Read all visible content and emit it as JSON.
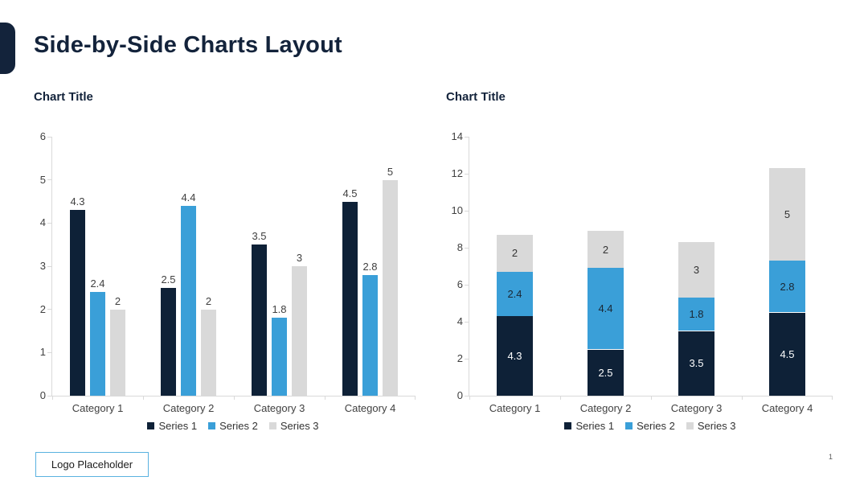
{
  "slide": {
    "title": "Side-by-Side Charts Layout",
    "logo_placeholder": "Logo Placeholder",
    "page_number": "1",
    "accent_color": "#13233b",
    "logo_border_color": "#5ab2e0"
  },
  "chart_data": [
    {
      "type": "bar",
      "stacked": false,
      "title": "Chart Title",
      "categories": [
        "Category 1",
        "Category 2",
        "Category 3",
        "Category 4"
      ],
      "series": [
        {
          "name": "Series 1",
          "values": [
            4.3,
            2.5,
            3.5,
            4.5
          ],
          "color": "#0e2137",
          "label_color": "#ffffff"
        },
        {
          "name": "Series 2",
          "values": [
            2.4,
            4.4,
            1.8,
            2.8
          ],
          "color": "#3a9fd8",
          "label_color": "#1a2733"
        },
        {
          "name": "Series 3",
          "values": [
            2,
            2,
            3,
            5
          ],
          "color": "#d9d9d9",
          "label_color": "#333333"
        }
      ],
      "ylim": [
        0,
        6
      ],
      "ytick_step": 1,
      "grid": false,
      "legend_position": "bottom",
      "data_labels": true,
      "label_position": "above"
    },
    {
      "type": "bar",
      "stacked": true,
      "title": "Chart Title",
      "categories": [
        "Category 1",
        "Category 2",
        "Category 3",
        "Category 4"
      ],
      "series": [
        {
          "name": "Series 1",
          "values": [
            4.3,
            2.5,
            3.5,
            4.5
          ],
          "color": "#0e2137",
          "label_color": "#ffffff"
        },
        {
          "name": "Series 2",
          "values": [
            2.4,
            4.4,
            1.8,
            2.8
          ],
          "color": "#3a9fd8",
          "label_color": "#1a2733"
        },
        {
          "name": "Series 3",
          "values": [
            2,
            2,
            3,
            5
          ],
          "color": "#d9d9d9",
          "label_color": "#333333"
        }
      ],
      "ylim": [
        0,
        14
      ],
      "ytick_step": 2,
      "grid": false,
      "legend_position": "bottom",
      "data_labels": true,
      "label_position": "inside"
    }
  ]
}
